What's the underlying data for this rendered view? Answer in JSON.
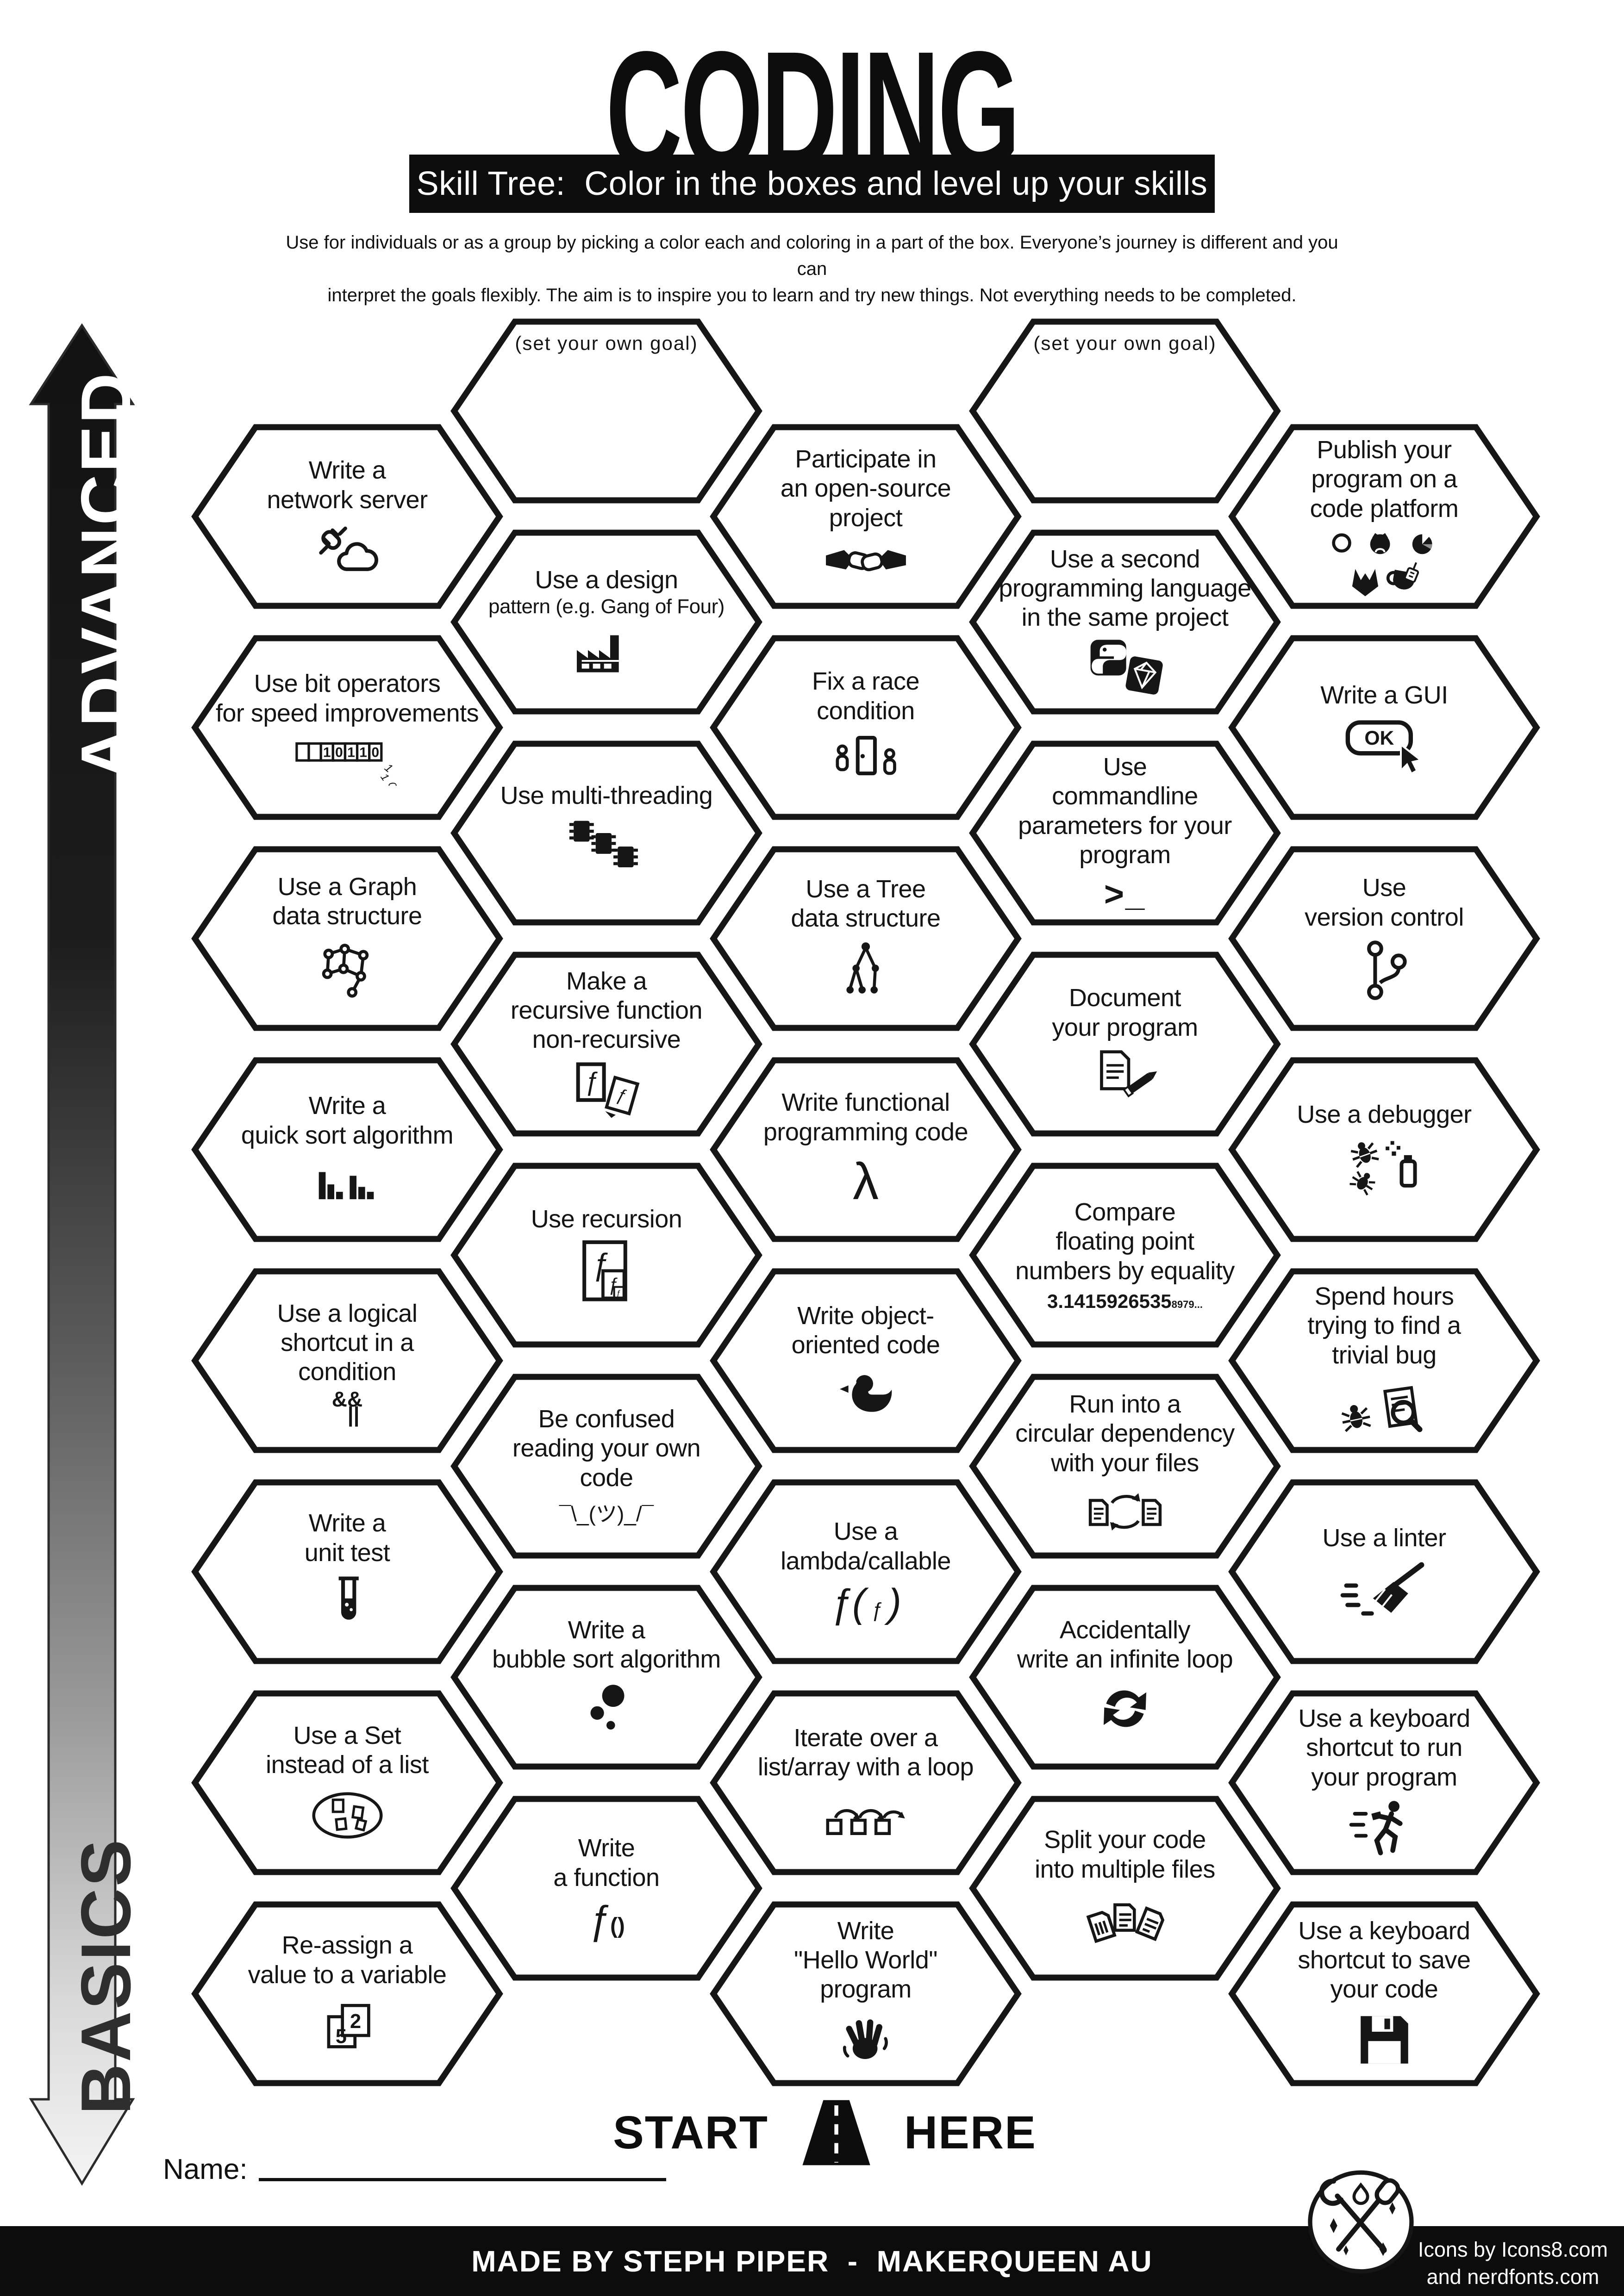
{
  "title": "CODING",
  "banner": "Skill Tree:  Color in the boxes and level up your skills",
  "subtitle_line1": "Use for individuals or as a group by picking a color each and coloring in a part of the box.  Everyone’s journey is different and you can",
  "subtitle_line2": "interpret the goals flexibly.  The aim is to inspire you to learn and try new things. Not everything needs to be completed.",
  "axis": {
    "top_label": "ADVANCED",
    "bottom_label": "BASICS"
  },
  "start_here": {
    "start": "START",
    "here": "HERE"
  },
  "name_label": "Name:",
  "footer": {
    "credit": "MADE BY STEPH PIPER  -  MAKERQUEEN AU",
    "icons_credit_line1": "Icons by Icons8.com",
    "icons_credit_line2": "and nerdfonts.com"
  },
  "colors": {
    "ink": "#161616",
    "paper": "#ffffff",
    "banner_bg": "#0d0d0d"
  },
  "hexagons": [
    {
      "id": "a1",
      "col": 0,
      "row": 0,
      "lines": [
        "Write a",
        "network server"
      ],
      "icon": "plug-cloud-icon"
    },
    {
      "id": "a2",
      "col": 0,
      "row": 1,
      "lines": [
        "Use bit operators",
        "for speed improvements"
      ],
      "icon": "binary-bits-icon",
      "icon_text": "10110"
    },
    {
      "id": "a3",
      "col": 0,
      "row": 2,
      "lines": [
        "Use a Graph",
        "data structure"
      ],
      "icon": "graph-icon"
    },
    {
      "id": "a4",
      "col": 0,
      "row": 3,
      "lines": [
        "Write a",
        "quick sort algorithm"
      ],
      "icon": "bar-chart-icon"
    },
    {
      "id": "a5",
      "col": 0,
      "row": 4,
      "lines": [
        "Use a logical",
        "shortcut in a",
        "condition"
      ],
      "icon": "and-or-icon",
      "icon_text": "&&||"
    },
    {
      "id": "a6",
      "col": 0,
      "row": 5,
      "lines": [
        "Write a",
        "unit test"
      ],
      "icon": "test-tube-icon"
    },
    {
      "id": "a7",
      "col": 0,
      "row": 6,
      "lines": [
        "Use a Set",
        "instead of a list"
      ],
      "icon": "set-venn-icon"
    },
    {
      "id": "a8",
      "col": 0,
      "row": 7,
      "lines": [
        "Re-assign a",
        "value to a variable"
      ],
      "icon": "value-cards-icon",
      "icon_text": "52"
    },
    {
      "id": "b1",
      "col": 1,
      "row": 0,
      "variant": "goal",
      "lines": [
        "(set your own goal)"
      ],
      "icon": null
    },
    {
      "id": "b2",
      "col": 1,
      "row": 1,
      "lines": [
        "Use a design",
        "pattern (e.g. Gang of Four)"
      ],
      "small": [
        1
      ],
      "icon": "factory-icon"
    },
    {
      "id": "b3",
      "col": 1,
      "row": 2,
      "lines": [
        "Use multi-threading"
      ],
      "icon": "chips-icon"
    },
    {
      "id": "b4",
      "col": 1,
      "row": 3,
      "lines": [
        "Make a",
        "recursive function",
        "non-recursive"
      ],
      "icon": "refactor-pages-icon"
    },
    {
      "id": "b5",
      "col": 1,
      "row": 4,
      "lines": [
        "Use recursion"
      ],
      "icon": "nested-f-icon"
    },
    {
      "id": "b6",
      "col": 1,
      "row": 5,
      "lines": [
        "Be confused",
        "reading your own",
        "code"
      ],
      "icon": "shrug-icon",
      "icon_text": "¯\\_(ツ)_/¯"
    },
    {
      "id": "b7",
      "col": 1,
      "row": 6,
      "lines": [
        "Write a",
        "bubble sort algorithm"
      ],
      "icon": "bubbles-icon"
    },
    {
      "id": "b8",
      "col": 1,
      "row": 7,
      "lines": [
        "Write",
        "a function"
      ],
      "icon": "f-paren-icon",
      "icon_text": "ƒ()"
    },
    {
      "id": "c1",
      "col": 2,
      "row": 0,
      "lines": [
        "Participate in",
        "an open-source",
        "project"
      ],
      "icon": "handshake-icon"
    },
    {
      "id": "c2",
      "col": 2,
      "row": 1,
      "lines": [
        "Fix a race",
        "condition"
      ],
      "icon": "race-door-icon"
    },
    {
      "id": "c3",
      "col": 2,
      "row": 2,
      "lines": [
        "Use a Tree",
        "data structure"
      ],
      "icon": "tree-icon"
    },
    {
      "id": "c4",
      "col": 2,
      "row": 3,
      "lines": [
        "Write functional",
        "programming code"
      ],
      "icon": "lambda-icon",
      "icon_text": "λ"
    },
    {
      "id": "c5",
      "col": 2,
      "row": 4,
      "lines": [
        "Write object-",
        "oriented code"
      ],
      "icon": "duck-icon"
    },
    {
      "id": "c6",
      "col": 2,
      "row": 5,
      "lines": [
        "Use a",
        "lambda/callable"
      ],
      "icon": "f-call-icon",
      "icon_text": "ƒ( ƒ )"
    },
    {
      "id": "c7",
      "col": 2,
      "row": 6,
      "lines": [
        "Iterate over a",
        "list/array with a loop"
      ],
      "icon": "loop-array-icon"
    },
    {
      "id": "c8",
      "col": 2,
      "row": 7,
      "lines": [
        "Write",
        "\"Hello World\"",
        "program"
      ],
      "icon": "wave-icon"
    },
    {
      "id": "d1",
      "col": 3,
      "row": 0,
      "variant": "goal",
      "lines": [
        "(set your own goal)"
      ],
      "icon": null
    },
    {
      "id": "d2",
      "col": 3,
      "row": 1,
      "lines": [
        "Use a second",
        "programming language",
        "in the same project"
      ],
      "icon": "python-gem-icon"
    },
    {
      "id": "d3",
      "col": 3,
      "row": 2,
      "lines": [
        "Use",
        "commandline",
        "parameters for your",
        "program"
      ],
      "icon": "terminal-icon",
      "icon_text": ">_"
    },
    {
      "id": "d4",
      "col": 3,
      "row": 3,
      "lines": [
        "Document",
        "your program"
      ],
      "icon": "doc-pencil-icon"
    },
    {
      "id": "d5",
      "col": 3,
      "row": 4,
      "lines": [
        "Compare",
        "floating point",
        "numbers by equality"
      ],
      "icon": "pi-icon",
      "icon_text": "3.14159265358979..."
    },
    {
      "id": "d6",
      "col": 3,
      "row": 5,
      "lines": [
        "Run into a",
        "circular dependency",
        "with your files"
      ],
      "icon": "circular-files-icon"
    },
    {
      "id": "d7",
      "col": 3,
      "row": 6,
      "lines": [
        "Accidentally",
        "write an infinite loop"
      ],
      "icon": "infinite-loop-icon"
    },
    {
      "id": "d8",
      "col": 3,
      "row": 7,
      "lines": [
        "Split your code",
        "into multiple files"
      ],
      "icon": "multi-files-icon"
    },
    {
      "id": "e1",
      "col": 4,
      "row": 0,
      "lines": [
        "Publish your",
        "program on a",
        "code platform"
      ],
      "icon": "platforms-icon"
    },
    {
      "id": "e2",
      "col": 4,
      "row": 1,
      "lines": [
        "Write a GUI"
      ],
      "icon": "ok-button-icon",
      "icon_text": "OK"
    },
    {
      "id": "e3",
      "col": 4,
      "row": 2,
      "lines": [
        "Use",
        "version control"
      ],
      "icon": "git-branch-icon"
    },
    {
      "id": "e4",
      "col": 4,
      "row": 3,
      "lines": [
        "Use a debugger"
      ],
      "icon": "debugger-icon"
    },
    {
      "id": "e5",
      "col": 4,
      "row": 4,
      "lines": [
        "Spend hours",
        "trying to find a",
        "trivial bug"
      ],
      "icon": "bug-search-icon"
    },
    {
      "id": "e6",
      "col": 4,
      "row": 5,
      "lines": [
        "Use a linter"
      ],
      "icon": "broom-icon"
    },
    {
      "id": "e7",
      "col": 4,
      "row": 6,
      "lines": [
        "Use a keyboard",
        "shortcut to run",
        "your program"
      ],
      "icon": "runner-icon"
    },
    {
      "id": "e8",
      "col": 4,
      "row": 7,
      "lines": [
        "Use a keyboard",
        "shortcut to save",
        "your code"
      ],
      "icon": "floppy-icon"
    }
  ]
}
